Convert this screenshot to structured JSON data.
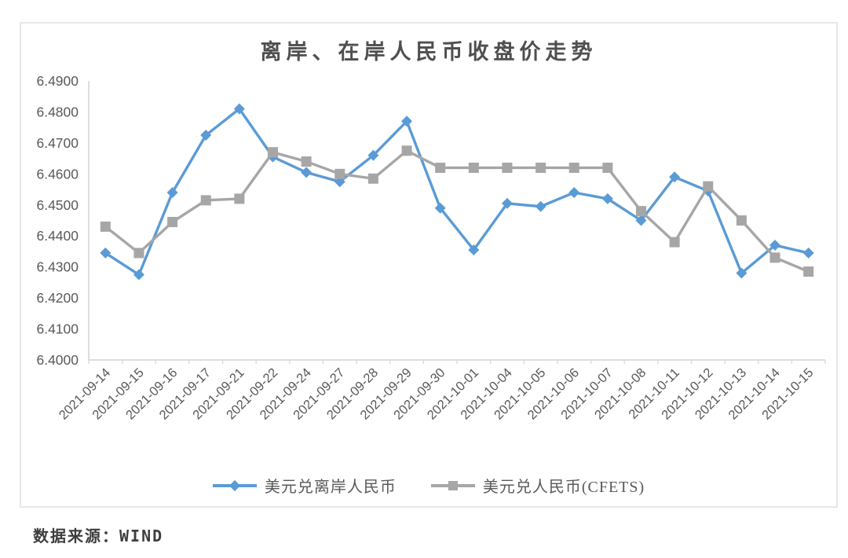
{
  "title": "离岸、在岸人民币收盘价走势",
  "footer": "数据来源：WIND",
  "chart_data": {
    "type": "line",
    "title": "离岸、在岸人民币收盘价走势",
    "categories": [
      "2021-09-14",
      "2021-09-15",
      "2021-09-16",
      "2021-09-17",
      "2021-09-21",
      "2021-09-22",
      "2021-09-24",
      "2021-09-27",
      "2021-09-28",
      "2021-09-29",
      "2021-09-30",
      "2021-10-01",
      "2021-10-04",
      "2021-10-05",
      "2021-10-06",
      "2021-10-07",
      "2021-10-08",
      "2021-10-11",
      "2021-10-12",
      "2021-10-13",
      "2021-10-14",
      "2021-10-15"
    ],
    "series": [
      {
        "name": "美元兑离岸人民币",
        "color": "#5B9BD5",
        "marker": "diamond",
        "values": [
          6.4345,
          6.4275,
          6.454,
          6.4725,
          6.481,
          6.4655,
          6.4605,
          6.4575,
          6.466,
          6.477,
          6.449,
          6.4355,
          6.4505,
          6.4495,
          6.454,
          6.452,
          6.445,
          6.459,
          6.4545,
          6.428,
          6.437,
          6.4345
        ]
      },
      {
        "name": "美元兑人民币(CFETS)",
        "color": "#A6A6A6",
        "marker": "square",
        "values": [
          6.443,
          6.4345,
          6.4445,
          6.4515,
          6.452,
          6.467,
          6.464,
          6.46,
          6.4585,
          6.4675,
          6.462,
          6.462,
          6.462,
          6.462,
          6.462,
          6.462,
          6.448,
          6.438,
          6.456,
          6.445,
          6.433,
          6.4285
        ]
      }
    ],
    "ylim": [
      6.4,
      6.49
    ],
    "ytick_step": 0.01,
    "ytick_decimals": 4,
    "grid": false,
    "legend_position": "bottom",
    "axis_color": "#D9D9D9",
    "label_color": "#595959"
  }
}
